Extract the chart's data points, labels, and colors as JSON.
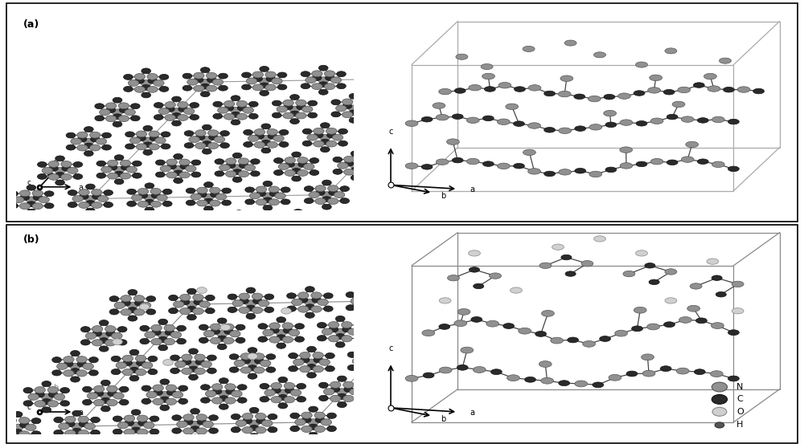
{
  "figure_width": 10.0,
  "figure_height": 5.58,
  "bg_color": "#f0f0f0",
  "atom_colors": {
    "N": "#909090",
    "C": "#2a2a2a",
    "O": "#d0d0d0",
    "H": "#555555"
  },
  "atom_edge_colors": {
    "N": "#555555",
    "C": "#111111",
    "O": "#888888",
    "H": "#333333"
  },
  "bond_color": "#444444",
  "cell_color_a": "#aaaaaa",
  "cell_color_b": "#888888",
  "legend_items": [
    {
      "label": "N",
      "fc": "#909090",
      "ec": "#555555",
      "r": 0.09
    },
    {
      "label": "C",
      "fc": "#2a2a2a",
      "ec": "#111111",
      "r": 0.09
    },
    {
      "label": "O",
      "fc": "#d0d0d0",
      "ec": "#888888",
      "r": 0.09
    },
    {
      "label": "H",
      "fc": "#555555",
      "ec": "#333333",
      "r": 0.055
    }
  ]
}
